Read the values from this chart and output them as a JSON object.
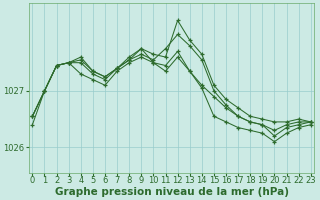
{
  "xlabel": "Graphe pression niveau de la mer (hPa)",
  "hours": [
    0,
    1,
    2,
    3,
    4,
    5,
    6,
    7,
    8,
    9,
    10,
    11,
    12,
    13,
    14,
    15,
    16,
    17,
    18,
    19,
    20,
    21,
    22,
    23
  ],
  "series": [
    [
      1026.55,
      1027.0,
      1027.45,
      1027.5,
      1027.6,
      1027.35,
      1027.25,
      1027.4,
      1027.55,
      1027.75,
      1027.65,
      1027.6,
      1028.25,
      1027.9,
      1027.65,
      1027.1,
      1026.85,
      1026.7,
      1026.55,
      1026.5,
      1026.45,
      1026.45,
      1026.5,
      1026.45
    ],
    [
      1026.55,
      1027.0,
      1027.45,
      1027.5,
      1027.5,
      1027.3,
      1027.2,
      1027.4,
      1027.55,
      1027.65,
      1027.55,
      1027.75,
      1028.0,
      1027.8,
      1027.55,
      1027.0,
      1026.75,
      1026.55,
      1026.45,
      1026.4,
      1026.2,
      1026.35,
      1026.4,
      1026.45
    ],
    [
      1026.55,
      1027.0,
      1027.45,
      1027.5,
      1027.3,
      1027.2,
      1027.1,
      1027.35,
      1027.5,
      1027.6,
      1027.5,
      1027.45,
      1027.7,
      1027.35,
      1027.05,
      1026.55,
      1026.45,
      1026.35,
      1026.3,
      1026.25,
      1026.1,
      1026.25,
      1026.35,
      1026.4
    ],
    [
      1026.4,
      1027.0,
      1027.45,
      1027.5,
      1027.55,
      1027.35,
      1027.25,
      1027.4,
      1027.6,
      1027.75,
      1027.5,
      1027.35,
      1027.6,
      1027.35,
      1027.1,
      1026.9,
      1026.7,
      1026.55,
      1026.45,
      1026.4,
      1026.3,
      1026.4,
      1026.45,
      1026.45
    ]
  ],
  "line_color": "#2d6b2d",
  "bg_color": "#cceae4",
  "grid_color": "#99cccc",
  "yticks": [
    1026,
    1027
  ],
  "ylim": [
    1025.55,
    1028.55
  ],
  "xlim": [
    -0.3,
    23.3
  ],
  "tick_fontsize": 6,
  "xlabel_fontsize": 7.5
}
